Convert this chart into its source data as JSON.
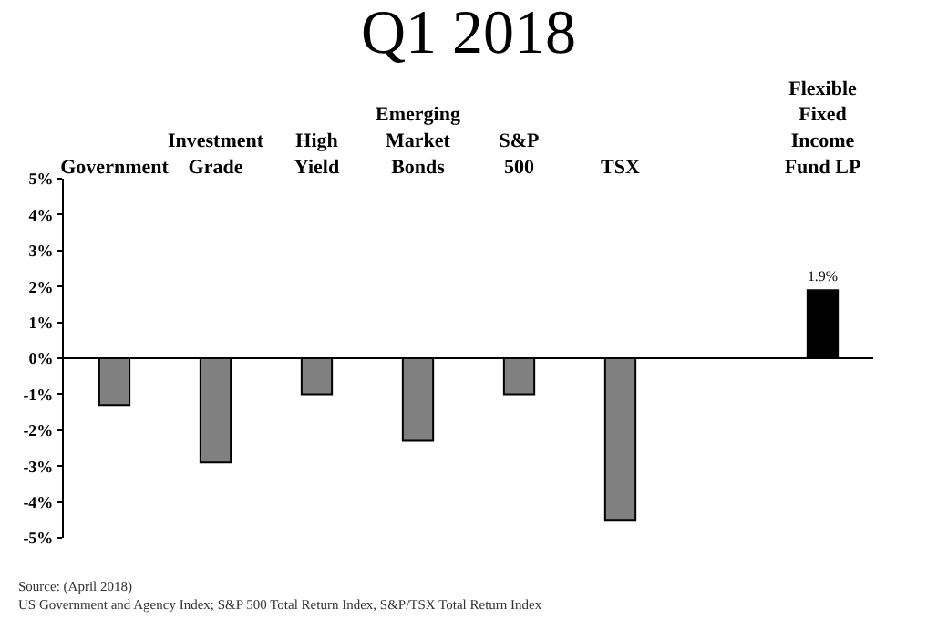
{
  "chart_data": {
    "type": "bar",
    "title": "Q1 2018",
    "categories": [
      "Government",
      "Investment Grade",
      "High Yield",
      "Emerging Market Bonds",
      "S&P 500",
      "TSX",
      null,
      "Flexible Fixed Income Fund LP"
    ],
    "values": [
      -1.3,
      -2.9,
      -1.0,
      -2.3,
      -1.0,
      -4.5,
      null,
      1.9
    ],
    "colors": [
      "#808080",
      "#808080",
      "#808080",
      "#808080",
      "#808080",
      "#808080",
      null,
      "#000000"
    ],
    "value_labels": [
      null,
      null,
      null,
      null,
      null,
      null,
      null,
      "1.9%"
    ],
    "ylim": [
      -5,
      5
    ],
    "yticks": [
      {
        "value": 5,
        "label": "5%"
      },
      {
        "value": 4,
        "label": "4%"
      },
      {
        "value": 3,
        "label": "3%"
      },
      {
        "value": 2,
        "label": "2%"
      },
      {
        "value": 1,
        "label": "1%"
      },
      {
        "value": 0,
        "label": "0%"
      },
      {
        "value": -1,
        "label": "-1%"
      },
      {
        "value": -2,
        "label": "-2%"
      },
      {
        "value": -3,
        "label": "-3%"
      },
      {
        "value": -4,
        "label": "-4%"
      },
      {
        "value": -5,
        "label": "-5%"
      }
    ],
    "annotations": [
      "Source: (April 2018)",
      "US Government and Agency Index; S&P 500 Total Return Index, S&P/TSX Total Return Index"
    ]
  }
}
